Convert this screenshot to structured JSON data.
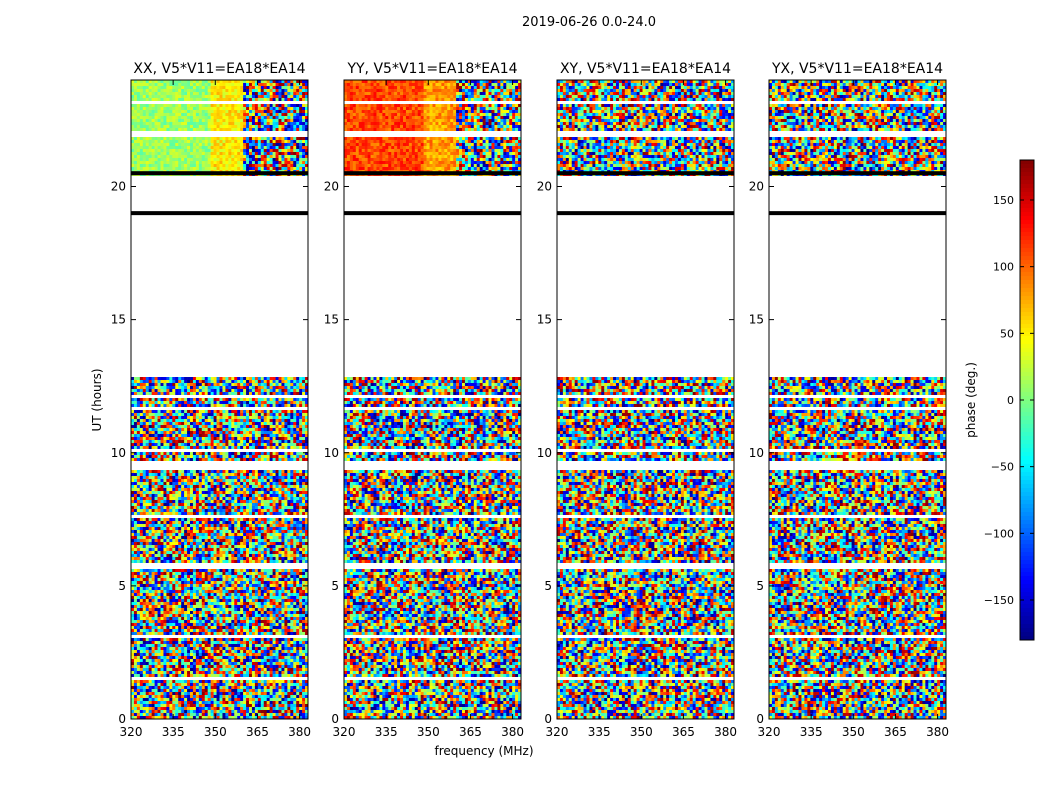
{
  "figure": {
    "suptitle": "2019-06-26 0.0-24.0",
    "xlabel": "frequency (MHz)",
    "ylabel": "UT (hours)"
  },
  "chart_data": {
    "type": "heatmap",
    "title": "2019-06-26 0.0-24.0",
    "xlabel": "frequency (MHz)",
    "ylabel": "UT (hours)",
    "xlim": [
      320,
      383
    ],
    "ylim": [
      0,
      24
    ],
    "x_ticks": [
      "320",
      "335",
      "350",
      "365",
      "380"
    ],
    "x_tick_values": [
      320,
      335,
      350,
      365,
      380
    ],
    "y_ticks": [
      "0",
      "5",
      "10",
      "15",
      "20"
    ],
    "y_tick_values": [
      0,
      5,
      10,
      15,
      20
    ],
    "panels": [
      {
        "title": "XX, V5*V11=EA18*EA14",
        "coherent_top_band_center_deg": 10,
        "coherent_top_band_mid_deg": 50
      },
      {
        "title": "YY, V5*V11=EA18*EA14",
        "coherent_top_band_center_deg": 110,
        "coherent_top_band_mid_deg": 80
      },
      {
        "title": "XY, V5*V11=EA18*EA14",
        "coherent_top_band_center_deg": null,
        "coherent_top_band_mid_deg": null
      },
      {
        "title": "YX, V5*V11=EA18*EA14",
        "coherent_top_band_center_deg": null,
        "coherent_top_band_mid_deg": null
      }
    ],
    "data_gaps_ut_hours": [
      [
        12.85,
        20.45
      ],
      [
        21.9,
        22.05
      ],
      [
        23.1,
        23.25
      ],
      [
        9.4,
        9.65
      ],
      [
        7.5,
        7.65
      ],
      [
        5.65,
        5.85
      ],
      [
        3.05,
        3.15
      ],
      [
        11.6,
        11.75
      ],
      [
        12.1,
        12.2
      ],
      [
        10.0,
        10.1
      ],
      [
        1.5,
        1.6
      ]
    ],
    "flagged_lines_ut_hours": [
      19.0,
      20.5
    ],
    "colorbar": {
      "label": "phase (deg.)",
      "range": [
        -180,
        180
      ],
      "ticks": [
        "150",
        "100",
        "50",
        "0",
        "−50",
        "−100",
        "−150"
      ],
      "tick_values": [
        150,
        100,
        50,
        0,
        -50,
        -100,
        -150
      ],
      "colormap": "jet"
    }
  }
}
